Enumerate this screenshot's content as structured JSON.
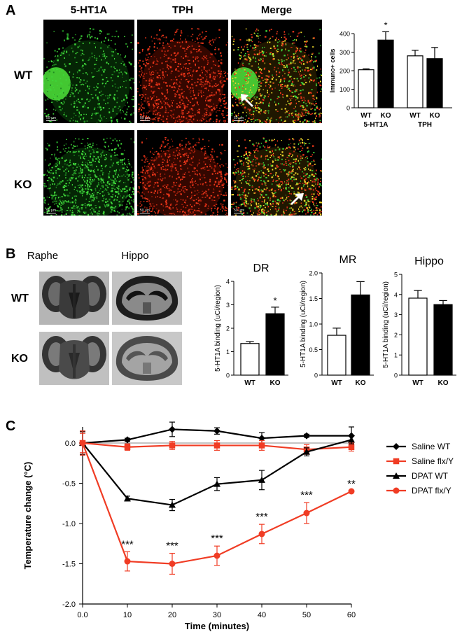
{
  "panel_a": {
    "letter": "A",
    "columns": [
      "5-HT1A",
      "TPH",
      "Merge"
    ],
    "rows": [
      "WT",
      "KO"
    ],
    "scale_label": "50 µm"
  },
  "panel_b": {
    "letter": "B",
    "columns": [
      "Raphe",
      "Hippo"
    ],
    "rows": [
      "WT",
      "KO"
    ]
  },
  "panel_c": {
    "letter": "C"
  },
  "colors": {
    "green": "#37c832",
    "red": "#e23a1c",
    "red_line": "#f03c24",
    "black": "#000000"
  },
  "chart_data": [
    {
      "type": "bar",
      "id": "immuno",
      "title": "",
      "ylabel": "Immuno+ cells",
      "ylim": [
        0,
        400
      ],
      "yticks": [
        0,
        100,
        200,
        300,
        400
      ],
      "group_labels": [
        "5-HT1A",
        "TPH"
      ],
      "categories": [
        "WT",
        "KO",
        "WT",
        "KO"
      ],
      "values": [
        205,
        365,
        280,
        265
      ],
      "errors": [
        5,
        45,
        30,
        60
      ],
      "fills": [
        "white",
        "black",
        "white",
        "black"
      ],
      "annotations": [
        {
          "index": 1,
          "text": "*"
        }
      ]
    },
    {
      "type": "bar",
      "id": "dr",
      "title": "DR",
      "ylabel": "5-HT1A binding (uCi/region)",
      "ylim": [
        0,
        4
      ],
      "yticks": [
        0,
        1,
        2,
        3,
        4
      ],
      "categories": [
        "WT",
        "KO"
      ],
      "values": [
        1.35,
        2.62
      ],
      "errors": [
        0.08,
        0.28
      ],
      "fills": [
        "white",
        "black"
      ],
      "annotations": [
        {
          "index": 1,
          "text": "*"
        }
      ]
    },
    {
      "type": "bar",
      "id": "mr",
      "title": "MR",
      "ylabel": "5-HT1A binding (uCi/region)",
      "ylim": [
        0,
        2
      ],
      "yticks": [
        "0",
        "0.5",
        "1.0",
        "1.5",
        "2.0"
      ],
      "ytick_values": [
        0,
        0.5,
        1.0,
        1.5,
        2.0
      ],
      "categories": [
        "WT",
        "KO"
      ],
      "values": [
        0.78,
        1.57
      ],
      "errors": [
        0.14,
        0.26
      ],
      "fills": [
        "white",
        "black"
      ],
      "annotations": []
    },
    {
      "type": "bar",
      "id": "hippo",
      "title": "Hippo",
      "ylabel": "5-HT1A binding (uCi/region)",
      "ylim": [
        0,
        5
      ],
      "yticks": [
        0,
        1,
        2,
        3,
        4,
        5
      ],
      "categories": [
        "WT",
        "KO"
      ],
      "values": [
        3.82,
        3.5
      ],
      "errors": [
        0.38,
        0.2
      ],
      "fills": [
        "white",
        "black"
      ],
      "annotations": []
    },
    {
      "type": "line",
      "id": "temperature",
      "title": "",
      "xlabel": "Time (minutes)",
      "ylabel": "Temperature change (°C)",
      "xlim": [
        0,
        60
      ],
      "ylim": [
        -2.0,
        0.2
      ],
      "xticks": [
        "0.0",
        "10",
        "20",
        "30",
        "40",
        "50",
        "60"
      ],
      "xtick_values": [
        0,
        10,
        20,
        30,
        40,
        50,
        60
      ],
      "yticks": [
        "-2.0",
        "-1.5",
        "-1.0",
        "-0.5",
        "0.0"
      ],
      "ytick_values": [
        -2.0,
        -1.5,
        -1.0,
        -0.5,
        0.0
      ],
      "x": [
        0,
        10,
        20,
        30,
        40,
        50,
        60
      ],
      "legend_position": "right",
      "series": [
        {
          "name": "Saline WT",
          "marker": "diamond",
          "color": "#000000",
          "values": [
            0.0,
            0.04,
            0.17,
            0.15,
            0.06,
            0.09,
            0.09
          ],
          "errors": [
            0.15,
            0.02,
            0.09,
            0.04,
            0.07,
            0.02,
            0.11
          ]
        },
        {
          "name": "Saline flx/Y",
          "marker": "square",
          "color": "#f03c24",
          "values": [
            0.0,
            -0.05,
            -0.03,
            -0.03,
            -0.03,
            -0.08,
            -0.05
          ],
          "errors": [
            0.12,
            0.04,
            0.05,
            0.06,
            0.06,
            0.06,
            0.05
          ]
        },
        {
          "name": "DPAT WT",
          "marker": "triangle",
          "color": "#000000",
          "values": [
            0.0,
            -0.69,
            -0.77,
            -0.51,
            -0.46,
            -0.11,
            0.04
          ],
          "errors": [
            0.14,
            0.03,
            0.07,
            0.08,
            0.12,
            0.05,
            0.05
          ]
        },
        {
          "name": "DPAT flx/Y",
          "marker": "circle",
          "color": "#f03c24",
          "values": [
            0.0,
            -1.47,
            -1.5,
            -1.4,
            -1.13,
            -0.87,
            -0.6
          ],
          "errors": [
            0.15,
            0.12,
            0.13,
            0.12,
            0.12,
            0.13,
            0.0
          ]
        }
      ],
      "annotations": [
        {
          "x": 10,
          "text": "***"
        },
        {
          "x": 20,
          "text": "***"
        },
        {
          "x": 30,
          "text": "***"
        },
        {
          "x": 40,
          "text": "***"
        },
        {
          "x": 50,
          "text": "***"
        },
        {
          "x": 60,
          "text": "**"
        }
      ]
    }
  ]
}
